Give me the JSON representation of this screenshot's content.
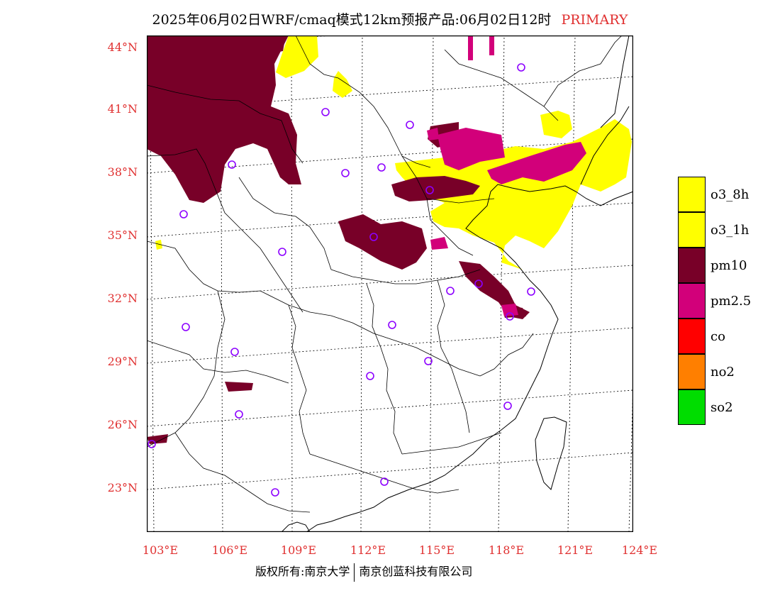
{
  "header": {
    "title": "2025年06月02日WRF/cmaq模式12km预报产品:06月02日12时",
    "tag": "PRIMARY"
  },
  "axes": {
    "lat_labels": [
      "44°N",
      "41°N",
      "38°N",
      "35°N",
      "32°N",
      "29°N",
      "26°N",
      "23°N"
    ],
    "lon_labels": [
      "103°E",
      "106°E",
      "109°E",
      "112°E",
      "115°E",
      "118°E",
      "121°E",
      "124°E"
    ]
  },
  "legend": {
    "items": [
      {
        "label": "o3_8h",
        "color": "#ffff00"
      },
      {
        "label": "o3_1h",
        "color": "#ffff00"
      },
      {
        "label": "pm10",
        "color": "#780028"
      },
      {
        "label": "pm2.5",
        "color": "#d2007a"
      },
      {
        "label": "co",
        "color": "#ff0000"
      },
      {
        "label": "no2",
        "color": "#ff7f00"
      },
      {
        "label": "so2",
        "color": "#00dd00"
      }
    ]
  },
  "colors": {
    "label_red": "#e03030",
    "station_marker": "#8c00ff",
    "pm10": "#780028",
    "pm25": "#d2007a",
    "o3": "#ffff00"
  },
  "footer": {
    "copyright": "版权所有:南京大学",
    "company": "南京创蓝科技有限公司"
  }
}
